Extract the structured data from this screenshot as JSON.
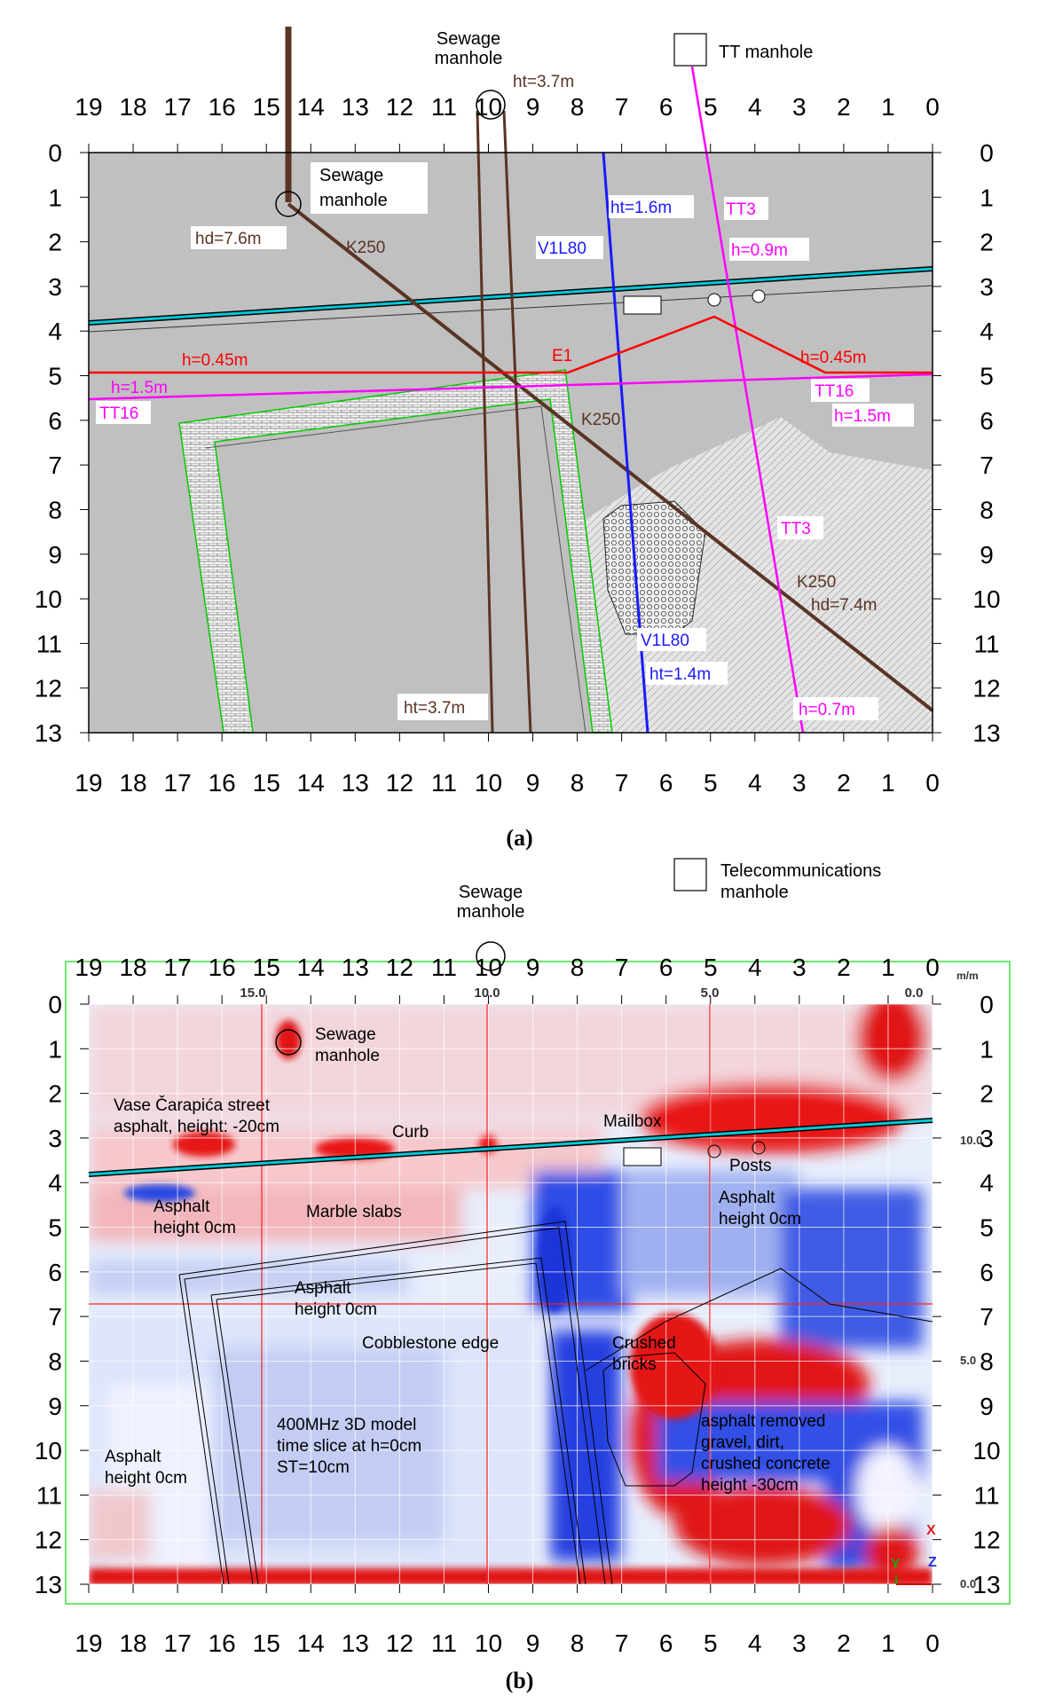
{
  "colors": {
    "ground_gray": "#c0c0c0",
    "sewage_brown": "#5a3424",
    "water_blue": "#1a1aff",
    "telecom_magenta": "#ff00ff",
    "electric_red": "#ff0000",
    "curb_cyan": "#00c8d8",
    "edge_green": "#00cc00",
    "frame_green": "#44dd44",
    "gpr_red": "#ee1111",
    "gpr_blue": "#1f3fe0"
  },
  "axes": {
    "x_ticks": [
      "19",
      "18",
      "17",
      "16",
      "15",
      "14",
      "13",
      "12",
      "11",
      "10",
      "9",
      "8",
      "7",
      "6",
      "5",
      "4",
      "3",
      "2",
      "1",
      "0"
    ],
    "y_ticks": [
      "0",
      "1",
      "2",
      "3",
      "4",
      "5",
      "6",
      "7",
      "8",
      "9",
      "10",
      "11",
      "12",
      "13"
    ]
  },
  "panel_a": {
    "caption": "(a)",
    "labels": {
      "sewage_top": "Sewage",
      "sewage_top2": "manhole",
      "tt_manhole": "TT manhole",
      "ht_top": "ht=3.7m",
      "sewage_inner": "Sewage",
      "sewage_inner2": "manhole",
      "hd_76": "hd=7.6m",
      "k250_a": "K250",
      "k250_b": "K250",
      "k250_c": "K250",
      "hd_74": "hd=7.4m",
      "ht_16": "ht=1.6m",
      "v1l80_a": "V1L80",
      "v1l80_b": "V1L80",
      "ht_14": "ht=1.4m",
      "tt3_a": "TT3",
      "tt3_b": "TT3",
      "h_09": "h=0.9m",
      "h_045_l": "h=0.45m",
      "h_045_r": "h=0.45m",
      "e1": "E1",
      "h_15_l": "h=1.5m",
      "h_15_r": "h=1.5m",
      "tt16_l": "TT16",
      "tt16_r": "TT16",
      "ht_37_bot": "ht=3.7m",
      "h_07": "h=0.7m"
    }
  },
  "panel_b": {
    "caption": "(b)",
    "scale_labels": {
      "s15": "15.0",
      "s10": "10.0",
      "s5": "5.0",
      "s0": "0.0",
      "unit": "m/m",
      "r10": "10.0",
      "r5": "5.0",
      "r00": "0.0"
    },
    "axis_letters": {
      "x": "X",
      "y": "Y",
      "z": "Z"
    },
    "labels": {
      "sewage_top": "Sewage",
      "sewage_top2": "manhole",
      "telecom": "Telecommunications",
      "telecom2": "manhole",
      "sewage_in": "Sewage",
      "sewage_in2": "manhole",
      "street1": "Vase Čarapića street",
      "street2": "asphalt, height: -20cm",
      "curb": "Curb",
      "mailbox": "Mailbox",
      "posts": "Posts",
      "asph_l1": "Asphalt",
      "asph_l2": "height 0cm",
      "marble": "Marble slabs",
      "asph_r1": "Asphalt",
      "asph_r2": "height 0cm",
      "asph_c1": "Asphalt",
      "asph_c2": "height 0cm",
      "cobble": "Cobblestone edge",
      "crushed1": "Crushed",
      "crushed2": "bricks",
      "model1": "400MHz 3D model",
      "model2": "time slice at h=0cm",
      "model3": "ST=10cm",
      "asph_b1": "Asphalt",
      "asph_b2": "height 0cm",
      "removed1": "asphalt removed",
      "removed2": "gravel, dirt,",
      "removed3": "crushed concrete",
      "removed4": "height -30cm"
    }
  }
}
